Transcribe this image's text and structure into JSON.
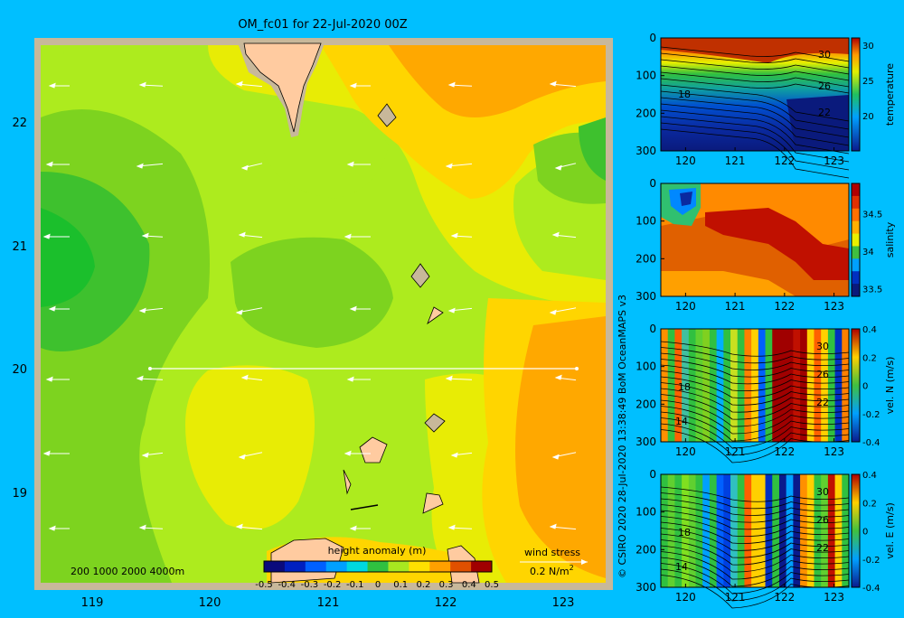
{
  "title": "OM_fc01 for 22-Jul-2020 00Z",
  "credit": "© CSIRO 2020   28-Jul-2020 13:38:49 BoM OceanMAPS v3",
  "colors": {
    "background": "#00BFFF",
    "frame": "#C8B89A",
    "land": "#FFCBA0"
  },
  "map": {
    "x_ticks": [
      "119",
      "120",
      "121",
      "122",
      "123"
    ],
    "y_ticks": [
      "22",
      "21",
      "20",
      "19"
    ],
    "scale_label": "200  1000  2000  4000m",
    "colorbar_label": "height anomaly (m)",
    "colorbar_ticks": [
      "-0.5",
      "-0.4",
      "-0.3",
      "-0.2",
      "-0.1",
      "0",
      "0.1",
      "0.2",
      "0.3",
      "0.4",
      "0.5"
    ],
    "wind_label": "wind stress",
    "wind_unit": "0.2 N/m",
    "wind_unit_sup": "2"
  },
  "chart_data": [
    {
      "type": "heatmap",
      "title": "OM_fc01 for 22-Jul-2020 00Z",
      "xlim": [
        118.55,
        123.5
      ],
      "ylim": [
        18.3,
        22.7
      ],
      "colorbar": {
        "label": "height anomaly (m)",
        "range": [
          -0.5,
          0.5
        ]
      },
      "section_line": {
        "lat": 20.0,
        "lon_start": 119.5,
        "lon_end": 123.05
      }
    },
    {
      "type": "heatmap",
      "panel": "temperature",
      "xlim": [
        119.5,
        123.3
      ],
      "ylim": [
        300,
        0
      ],
      "x_ticks": [
        "120",
        "121",
        "122",
        "123"
      ],
      "y_ticks": [
        "0",
        "100",
        "200",
        "300"
      ],
      "colorbar_label": "temperature",
      "colorbar_ticks": [
        "30",
        "25",
        "20"
      ],
      "clim": [
        15,
        31
      ],
      "contour_labels": [
        "30",
        "26",
        "22",
        "18"
      ]
    },
    {
      "type": "heatmap",
      "panel": "salinity",
      "xlim": [
        119.5,
        123.3
      ],
      "ylim": [
        300,
        0
      ],
      "x_ticks": [
        "120",
        "121",
        "122",
        "123"
      ],
      "y_ticks": [
        "0",
        "100",
        "200",
        "300"
      ],
      "colorbar_label": "salinity",
      "colorbar_ticks": [
        "34.5",
        "34",
        "33.5"
      ],
      "clim": [
        33.4,
        34.9
      ]
    },
    {
      "type": "heatmap",
      "panel": "vel. N (m/s)",
      "xlim": [
        119.5,
        123.3
      ],
      "ylim": [
        300,
        0
      ],
      "x_ticks": [
        "120",
        "121",
        "122",
        "123"
      ],
      "y_ticks": [
        "0",
        "100",
        "200",
        "300"
      ],
      "colorbar_label": "vel. N (m/s)",
      "colorbar_ticks": [
        "0.4",
        "0.2",
        "0",
        "-0.2",
        "-0.4"
      ],
      "clim": [
        -0.4,
        0.4
      ],
      "contour_labels": [
        "30",
        "26",
        "22",
        "18",
        "14"
      ]
    },
    {
      "type": "heatmap",
      "panel": "vel. E (m/s)",
      "xlim": [
        119.5,
        123.3
      ],
      "ylim": [
        300,
        0
      ],
      "x_ticks": [
        "120",
        "121",
        "122",
        "123"
      ],
      "y_ticks": [
        "0",
        "100",
        "200",
        "300"
      ],
      "colorbar_label": "vel. E (m/s)",
      "colorbar_ticks": [
        "0.4",
        "0.2",
        "0",
        "-0.2",
        "-0.4"
      ],
      "clim": [
        -0.4,
        0.4
      ],
      "contour_labels": [
        "30",
        "26",
        "22",
        "18",
        "14"
      ]
    }
  ]
}
